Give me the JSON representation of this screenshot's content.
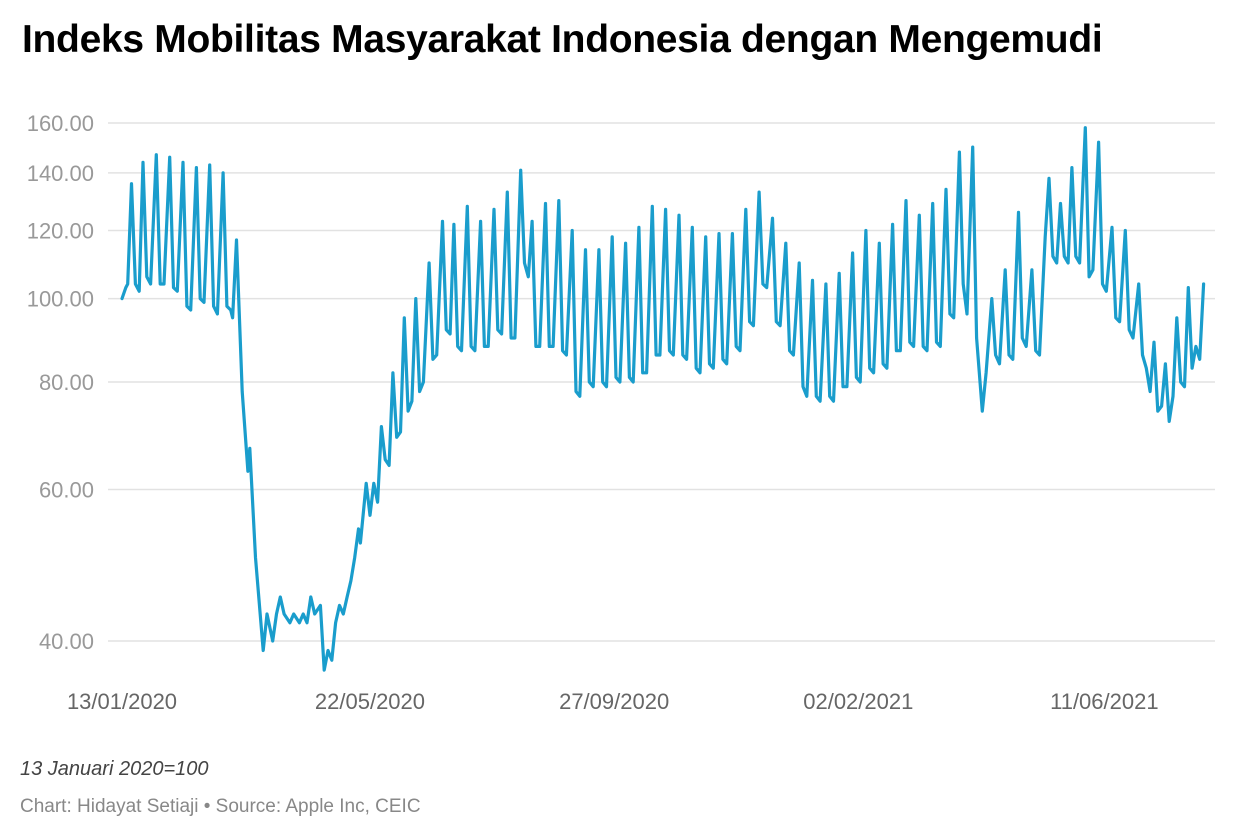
{
  "chart_data": {
    "type": "line",
    "title": "Indeks Mobilitas Masyarakat Indonesia dengan Mengemudi",
    "note": "13 Januari 2020=100",
    "credit": "Chart: Hidayat Setiaji • Source: Apple Inc, CEIC",
    "xlabel": "",
    "ylabel": "",
    "y_scale": "log",
    "grid": true,
    "y_ticks": [
      {
        "value": 40,
        "label": "40.00"
      },
      {
        "value": 60,
        "label": "60.00"
      },
      {
        "value": 80,
        "label": "80.00"
      },
      {
        "value": 100,
        "label": "100.00"
      },
      {
        "value": 120,
        "label": "120.00"
      },
      {
        "value": 140,
        "label": "140.00"
      },
      {
        "value": 160,
        "label": "160.00"
      }
    ],
    "x_ticks": [
      "13/01/2020",
      "22/05/2020",
      "27/09/2020",
      "02/02/2021",
      "11/06/2021"
    ],
    "x_range": [
      "2020-01-13",
      "2021-08-08"
    ],
    "color": "#1a9dcc",
    "series": [
      {
        "points": [
          [
            "2020-01-13",
            100
          ],
          [
            "2020-01-15",
            103
          ],
          [
            "2020-01-16",
            104
          ],
          [
            "2020-01-18",
            136
          ],
          [
            "2020-01-20",
            104
          ],
          [
            "2020-01-22",
            102
          ],
          [
            "2020-01-24",
            144
          ],
          [
            "2020-01-26",
            106
          ],
          [
            "2020-01-28",
            104
          ],
          [
            "2020-01-31",
            147
          ],
          [
            "2020-02-02",
            104
          ],
          [
            "2020-02-04",
            104
          ],
          [
            "2020-02-07",
            146
          ],
          [
            "2020-02-09",
            103
          ],
          [
            "2020-02-11",
            102
          ],
          [
            "2020-02-14",
            144
          ],
          [
            "2020-02-16",
            98
          ],
          [
            "2020-02-18",
            97
          ],
          [
            "2020-02-21",
            142
          ],
          [
            "2020-02-23",
            100
          ],
          [
            "2020-02-25",
            99
          ],
          [
            "2020-02-28",
            143
          ],
          [
            "2020-03-01",
            98
          ],
          [
            "2020-03-03",
            96
          ],
          [
            "2020-03-06",
            140
          ],
          [
            "2020-03-08",
            98
          ],
          [
            "2020-03-10",
            97
          ],
          [
            "2020-03-11",
            95
          ],
          [
            "2020-03-13",
            117
          ],
          [
            "2020-03-16",
            78
          ],
          [
            "2020-03-19",
            63
          ],
          [
            "2020-03-20",
            67
          ],
          [
            "2020-03-23",
            50
          ],
          [
            "2020-03-27",
            39
          ],
          [
            "2020-03-29",
            43
          ],
          [
            "2020-04-01",
            40
          ],
          [
            "2020-04-03",
            43
          ],
          [
            "2020-04-05",
            45
          ],
          [
            "2020-04-07",
            43
          ],
          [
            "2020-04-10",
            42
          ],
          [
            "2020-04-12",
            43
          ],
          [
            "2020-04-15",
            42
          ],
          [
            "2020-04-17",
            43
          ],
          [
            "2020-04-19",
            42
          ],
          [
            "2020-04-21",
            45
          ],
          [
            "2020-04-23",
            43
          ],
          [
            "2020-04-26",
            44
          ],
          [
            "2020-04-28",
            37
          ],
          [
            "2020-04-30",
            39
          ],
          [
            "2020-05-02",
            38
          ],
          [
            "2020-05-04",
            42
          ],
          [
            "2020-05-06",
            44
          ],
          [
            "2020-05-08",
            43
          ],
          [
            "2020-05-10",
            45
          ],
          [
            "2020-05-12",
            47
          ],
          [
            "2020-05-14",
            50
          ],
          [
            "2020-05-16",
            54
          ],
          [
            "2020-05-17",
            52
          ],
          [
            "2020-05-20",
            61
          ],
          [
            "2020-05-22",
            56
          ],
          [
            "2020-05-24",
            61
          ],
          [
            "2020-05-26",
            58
          ],
          [
            "2020-05-28",
            71
          ],
          [
            "2020-05-30",
            65
          ],
          [
            "2020-06-01",
            64
          ],
          [
            "2020-06-03",
            82
          ],
          [
            "2020-06-05",
            69
          ],
          [
            "2020-06-07",
            70
          ],
          [
            "2020-06-09",
            95
          ],
          [
            "2020-06-11",
            74
          ],
          [
            "2020-06-13",
            76
          ],
          [
            "2020-06-15",
            100
          ],
          [
            "2020-06-17",
            78
          ],
          [
            "2020-06-19",
            80
          ],
          [
            "2020-06-22",
            110
          ],
          [
            "2020-06-24",
            85
          ],
          [
            "2020-06-26",
            86
          ],
          [
            "2020-06-29",
            123
          ],
          [
            "2020-07-01",
            92
          ],
          [
            "2020-07-03",
            91
          ],
          [
            "2020-07-05",
            122
          ],
          [
            "2020-07-07",
            88
          ],
          [
            "2020-07-09",
            87
          ],
          [
            "2020-07-12",
            128
          ],
          [
            "2020-07-14",
            88
          ],
          [
            "2020-07-16",
            87
          ],
          [
            "2020-07-19",
            123
          ],
          [
            "2020-07-21",
            88
          ],
          [
            "2020-07-23",
            88
          ],
          [
            "2020-07-26",
            127
          ],
          [
            "2020-07-28",
            92
          ],
          [
            "2020-07-30",
            91
          ],
          [
            "2020-08-02",
            133
          ],
          [
            "2020-08-04",
            90
          ],
          [
            "2020-08-06",
            90
          ],
          [
            "2020-08-09",
            141
          ],
          [
            "2020-08-11",
            110
          ],
          [
            "2020-08-13",
            106
          ],
          [
            "2020-08-15",
            123
          ],
          [
            "2020-08-17",
            88
          ],
          [
            "2020-08-19",
            88
          ],
          [
            "2020-08-22",
            129
          ],
          [
            "2020-08-24",
            88
          ],
          [
            "2020-08-26",
            88
          ],
          [
            "2020-08-29",
            130
          ],
          [
            "2020-08-31",
            87
          ],
          [
            "2020-09-02",
            86
          ],
          [
            "2020-09-05",
            120
          ],
          [
            "2020-09-07",
            78
          ],
          [
            "2020-09-09",
            77
          ],
          [
            "2020-09-12",
            114
          ],
          [
            "2020-09-14",
            80
          ],
          [
            "2020-09-16",
            79
          ],
          [
            "2020-09-19",
            114
          ],
          [
            "2020-09-21",
            80
          ],
          [
            "2020-09-23",
            79
          ],
          [
            "2020-09-26",
            118
          ],
          [
            "2020-09-28",
            81
          ],
          [
            "2020-09-30",
            80
          ],
          [
            "2020-10-03",
            116
          ],
          [
            "2020-10-05",
            81
          ],
          [
            "2020-10-07",
            80
          ],
          [
            "2020-10-10",
            121
          ],
          [
            "2020-10-12",
            82
          ],
          [
            "2020-10-14",
            82
          ],
          [
            "2020-10-17",
            128
          ],
          [
            "2020-10-19",
            86
          ],
          [
            "2020-10-21",
            86
          ],
          [
            "2020-10-24",
            127
          ],
          [
            "2020-10-26",
            87
          ],
          [
            "2020-10-28",
            86
          ],
          [
            "2020-10-31",
            125
          ],
          [
            "2020-11-02",
            86
          ],
          [
            "2020-11-04",
            85
          ],
          [
            "2020-11-07",
            121
          ],
          [
            "2020-11-09",
            83
          ],
          [
            "2020-11-11",
            82
          ],
          [
            "2020-11-14",
            118
          ],
          [
            "2020-11-16",
            84
          ],
          [
            "2020-11-18",
            83
          ],
          [
            "2020-11-21",
            119
          ],
          [
            "2020-11-23",
            85
          ],
          [
            "2020-11-25",
            84
          ],
          [
            "2020-11-28",
            119
          ],
          [
            "2020-11-30",
            88
          ],
          [
            "2020-12-02",
            87
          ],
          [
            "2020-12-05",
            127
          ],
          [
            "2020-12-07",
            94
          ],
          [
            "2020-12-09",
            93
          ],
          [
            "2020-12-12",
            133
          ],
          [
            "2020-12-14",
            104
          ],
          [
            "2020-12-16",
            103
          ],
          [
            "2020-12-19",
            124
          ],
          [
            "2020-12-21",
            94
          ],
          [
            "2020-12-23",
            93
          ],
          [
            "2020-12-26",
            116
          ],
          [
            "2020-12-28",
            87
          ],
          [
            "2020-12-30",
            86
          ],
          [
            "2021-01-02",
            110
          ],
          [
            "2021-01-04",
            79
          ],
          [
            "2021-01-06",
            77
          ],
          [
            "2021-01-09",
            105
          ],
          [
            "2021-01-11",
            77
          ],
          [
            "2021-01-13",
            76
          ],
          [
            "2021-01-16",
            104
          ],
          [
            "2021-01-18",
            77
          ],
          [
            "2021-01-20",
            76
          ],
          [
            "2021-01-23",
            107
          ],
          [
            "2021-01-25",
            79
          ],
          [
            "2021-01-27",
            79
          ],
          [
            "2021-01-30",
            113
          ],
          [
            "2021-02-01",
            81
          ],
          [
            "2021-02-03",
            80
          ],
          [
            "2021-02-06",
            120
          ],
          [
            "2021-02-08",
            83
          ],
          [
            "2021-02-10",
            82
          ],
          [
            "2021-02-13",
            116
          ],
          [
            "2021-02-15",
            84
          ],
          [
            "2021-02-17",
            83
          ],
          [
            "2021-02-20",
            122
          ],
          [
            "2021-02-22",
            87
          ],
          [
            "2021-02-24",
            87
          ],
          [
            "2021-02-27",
            130
          ],
          [
            "2021-03-01",
            89
          ],
          [
            "2021-03-03",
            88
          ],
          [
            "2021-03-06",
            125
          ],
          [
            "2021-03-08",
            88
          ],
          [
            "2021-03-10",
            87
          ],
          [
            "2021-03-13",
            129
          ],
          [
            "2021-03-15",
            89
          ],
          [
            "2021-03-17",
            88
          ],
          [
            "2021-03-20",
            134
          ],
          [
            "2021-03-22",
            96
          ],
          [
            "2021-03-24",
            95
          ],
          [
            "2021-03-27",
            148
          ],
          [
            "2021-03-29",
            104
          ],
          [
            "2021-03-31",
            96
          ],
          [
            "2021-04-03",
            150
          ],
          [
            "2021-04-05",
            90
          ],
          [
            "2021-04-08",
            74
          ],
          [
            "2021-04-10",
            82
          ],
          [
            "2021-04-13",
            100
          ],
          [
            "2021-04-15",
            86
          ],
          [
            "2021-04-17",
            84
          ],
          [
            "2021-04-20",
            108
          ],
          [
            "2021-04-22",
            86
          ],
          [
            "2021-04-24",
            85
          ],
          [
            "2021-04-27",
            126
          ],
          [
            "2021-04-29",
            90
          ],
          [
            "2021-05-01",
            88
          ],
          [
            "2021-05-04",
            108
          ],
          [
            "2021-05-06",
            87
          ],
          [
            "2021-05-08",
            86
          ],
          [
            "2021-05-11",
            118
          ],
          [
            "2021-05-13",
            138
          ],
          [
            "2021-05-15",
            112
          ],
          [
            "2021-05-17",
            110
          ],
          [
            "2021-05-19",
            129
          ],
          [
            "2021-05-21",
            112
          ],
          [
            "2021-05-23",
            110
          ],
          [
            "2021-05-25",
            142
          ],
          [
            "2021-05-27",
            112
          ],
          [
            "2021-05-29",
            110
          ],
          [
            "2021-06-01",
            158
          ],
          [
            "2021-06-03",
            106
          ],
          [
            "2021-06-05",
            108
          ],
          [
            "2021-06-08",
            152
          ],
          [
            "2021-06-10",
            104
          ],
          [
            "2021-06-12",
            102
          ],
          [
            "2021-06-15",
            121
          ],
          [
            "2021-06-17",
            95
          ],
          [
            "2021-06-19",
            94
          ],
          [
            "2021-06-22",
            120
          ],
          [
            "2021-06-24",
            92
          ],
          [
            "2021-06-26",
            90
          ],
          [
            "2021-06-29",
            104
          ],
          [
            "2021-07-01",
            86
          ],
          [
            "2021-07-03",
            83
          ],
          [
            "2021-07-05",
            78
          ],
          [
            "2021-07-07",
            89
          ],
          [
            "2021-07-09",
            74
          ],
          [
            "2021-07-11",
            75
          ],
          [
            "2021-07-13",
            84
          ],
          [
            "2021-07-15",
            72
          ],
          [
            "2021-07-17",
            77
          ],
          [
            "2021-07-19",
            95
          ],
          [
            "2021-07-21",
            80
          ],
          [
            "2021-07-23",
            79
          ],
          [
            "2021-07-25",
            103
          ],
          [
            "2021-07-27",
            83
          ],
          [
            "2021-07-29",
            88
          ],
          [
            "2021-07-31",
            85
          ],
          [
            "2021-08-02",
            104
          ]
        ]
      }
    ]
  }
}
